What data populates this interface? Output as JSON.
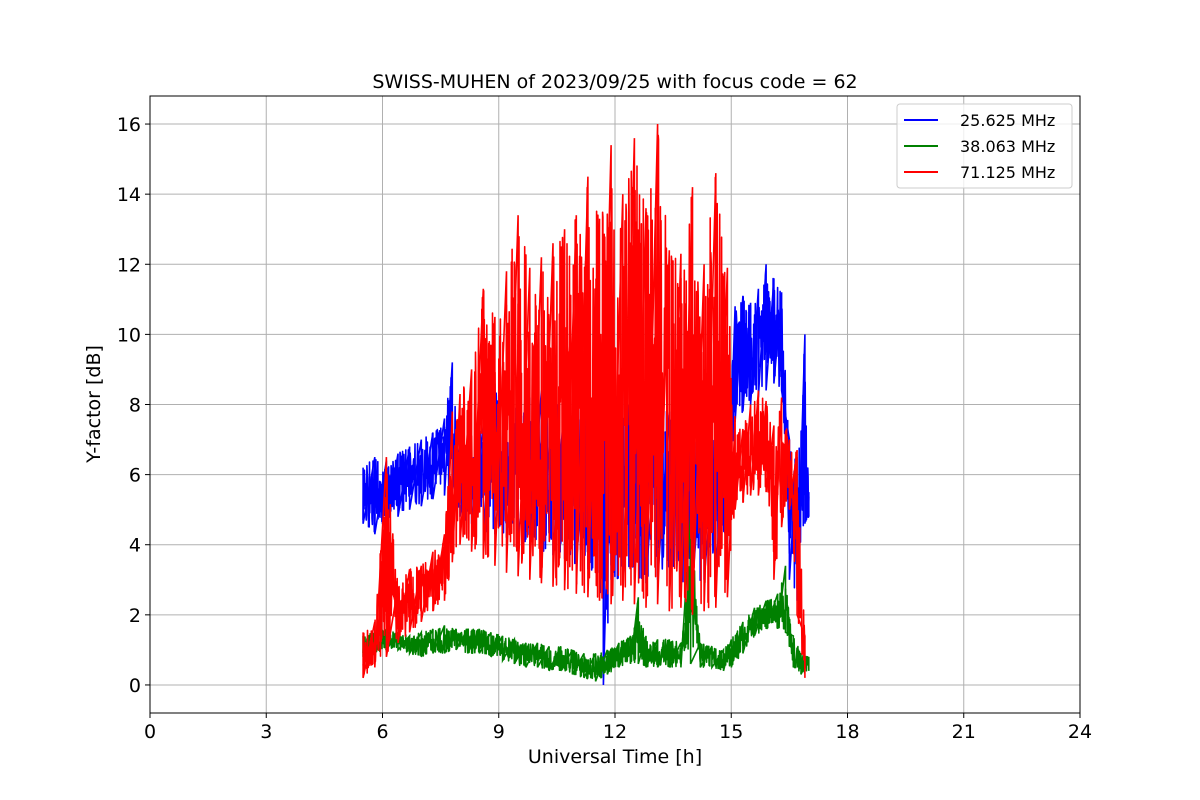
{
  "chart_data": {
    "type": "line",
    "title": "SWISS-MUHEN of 2023/09/25 with focus code = 62",
    "xlabel": "Universal Time [h]",
    "ylabel": "Y-factor [dB]",
    "xlim": [
      0,
      24
    ],
    "ylim": [
      -0.8,
      16.8
    ],
    "xticks": [
      0,
      3,
      6,
      9,
      12,
      15,
      18,
      21,
      24
    ],
    "yticks": [
      0,
      2,
      4,
      6,
      8,
      10,
      12,
      14,
      16
    ],
    "grid": true,
    "legend_position": "top-right",
    "series": [
      {
        "name": "25.625 MHz",
        "color": "#0000ff",
        "x": [
          5.5,
          5.8,
          6.1,
          6.4,
          6.7,
          7.0,
          7.3,
          7.6,
          7.8,
          8.0,
          8.3,
          8.6,
          8.9,
          9.2,
          9.5,
          9.8,
          10.1,
          10.4,
          10.7,
          11.0,
          11.3,
          11.6,
          11.7,
          11.9,
          12.2,
          12.5,
          12.8,
          13.1,
          13.4,
          13.7,
          14.0,
          14.3,
          14.6,
          14.9,
          15.1,
          15.3,
          15.5,
          15.7,
          15.9,
          16.1,
          16.3,
          16.5,
          16.7,
          16.9,
          17.0
        ],
        "y_low": [
          4.6,
          4.3,
          4.6,
          4.8,
          5.0,
          5.1,
          5.3,
          5.4,
          5.5,
          4.8,
          4.6,
          4.4,
          4.3,
          4.2,
          4.0,
          3.9,
          3.8,
          3.7,
          3.6,
          3.4,
          3.3,
          3.2,
          0.0,
          3.0,
          3.0,
          3.0,
          2.9,
          3.0,
          3.0,
          2.8,
          2.9,
          3.0,
          3.3,
          4.0,
          7.5,
          7.8,
          8.0,
          8.2,
          8.4,
          8.6,
          8.4,
          3.0,
          2.4,
          4.6,
          4.8
        ],
        "y_high": [
          6.2,
          6.5,
          6.4,
          6.6,
          6.8,
          7.0,
          7.2,
          7.6,
          9.2,
          6.9,
          7.1,
          7.4,
          8.6,
          7.6,
          8.0,
          8.2,
          8.4,
          8.2,
          8.1,
          8.0,
          8.3,
          8.5,
          8.0,
          8.2,
          8.6,
          8.3,
          8.5,
          8.0,
          7.8,
          7.9,
          7.5,
          7.3,
          7.0,
          7.5,
          10.8,
          11.1,
          10.9,
          11.3,
          12.0,
          11.6,
          11.2,
          7.0,
          6.5,
          10.0,
          5.5
        ]
      },
      {
        "name": "38.063 MHz",
        "color": "#008000",
        "x": [
          5.5,
          5.8,
          6.1,
          6.4,
          6.7,
          7.0,
          7.3,
          7.6,
          7.9,
          8.2,
          8.5,
          8.8,
          9.1,
          9.4,
          9.7,
          10.0,
          10.3,
          10.6,
          10.9,
          11.2,
          11.5,
          11.8,
          12.1,
          12.4,
          12.6,
          12.8,
          13.1,
          13.4,
          13.7,
          13.95,
          14.2,
          14.5,
          14.8,
          15.0,
          15.3,
          15.6,
          15.9,
          16.2,
          16.4,
          16.6,
          16.8,
          17.0
        ],
        "y_low": [
          0.8,
          0.9,
          1.0,
          1.0,
          0.9,
          0.8,
          0.9,
          0.9,
          1.0,
          0.9,
          0.9,
          0.8,
          0.7,
          0.6,
          0.5,
          0.5,
          0.4,
          0.4,
          0.3,
          0.2,
          0.1,
          0.3,
          0.5,
          0.6,
          0.6,
          0.5,
          0.5,
          0.5,
          0.5,
          0.6,
          0.5,
          0.5,
          0.4,
          0.5,
          0.9,
          1.4,
          1.6,
          1.6,
          1.5,
          0.5,
          0.3,
          0.4
        ],
        "y_high": [
          1.4,
          1.5,
          1.6,
          1.5,
          1.4,
          1.5,
          1.6,
          1.7,
          1.6,
          1.6,
          1.6,
          1.5,
          1.4,
          1.3,
          1.2,
          1.2,
          1.1,
          1.1,
          1.0,
          0.9,
          0.9,
          1.0,
          1.2,
          1.4,
          2.5,
          1.4,
          1.3,
          1.3,
          1.2,
          4.9,
          1.2,
          1.1,
          1.0,
          1.3,
          1.8,
          2.2,
          2.4,
          2.6,
          3.4,
          1.4,
          0.9,
          0.8
        ]
      },
      {
        "name": "71.125 MHz",
        "color": "#ff0000",
        "x": [
          5.5,
          5.8,
          6.1,
          6.4,
          6.7,
          7.0,
          7.3,
          7.6,
          7.8,
          8.0,
          8.3,
          8.6,
          8.9,
          9.2,
          9.5,
          9.8,
          10.1,
          10.4,
          10.7,
          11.0,
          11.3,
          11.6,
          11.9,
          12.2,
          12.5,
          12.8,
          13.1,
          13.4,
          13.7,
          14.0,
          14.3,
          14.6,
          14.9,
          15.1,
          15.3,
          15.5,
          15.7,
          15.9,
          16.1,
          16.3,
          16.5,
          16.7,
          16.9
        ],
        "y_low": [
          0.2,
          0.5,
          0.8,
          1.2,
          1.5,
          1.8,
          2.1,
          2.4,
          3.5,
          4.0,
          3.8,
          3.6,
          3.4,
          3.2,
          3.1,
          3.0,
          2.9,
          2.8,
          2.7,
          2.6,
          2.5,
          2.4,
          2.3,
          2.4,
          2.3,
          2.2,
          2.3,
          2.1,
          2.2,
          2.0,
          2.1,
          2.2,
          2.5,
          5.0,
          5.2,
          5.4,
          5.4,
          5.5,
          3.0,
          4.5,
          5.0,
          2.0,
          0.2
        ],
        "y_high": [
          1.5,
          1.8,
          6.5,
          2.8,
          3.3,
          3.4,
          3.8,
          4.3,
          7.8,
          8.3,
          9.0,
          11.3,
          10.5,
          11.8,
          13.4,
          11.9,
          12.2,
          12.6,
          13.0,
          13.4,
          14.5,
          13.3,
          15.4,
          14.0,
          15.6,
          13.6,
          16.0,
          12.4,
          12.3,
          14.2,
          12.0,
          14.6,
          11.9,
          7.6,
          7.3,
          8.0,
          8.4,
          8.1,
          7.4,
          8.2,
          7.0,
          6.7,
          1.4
        ]
      }
    ]
  }
}
